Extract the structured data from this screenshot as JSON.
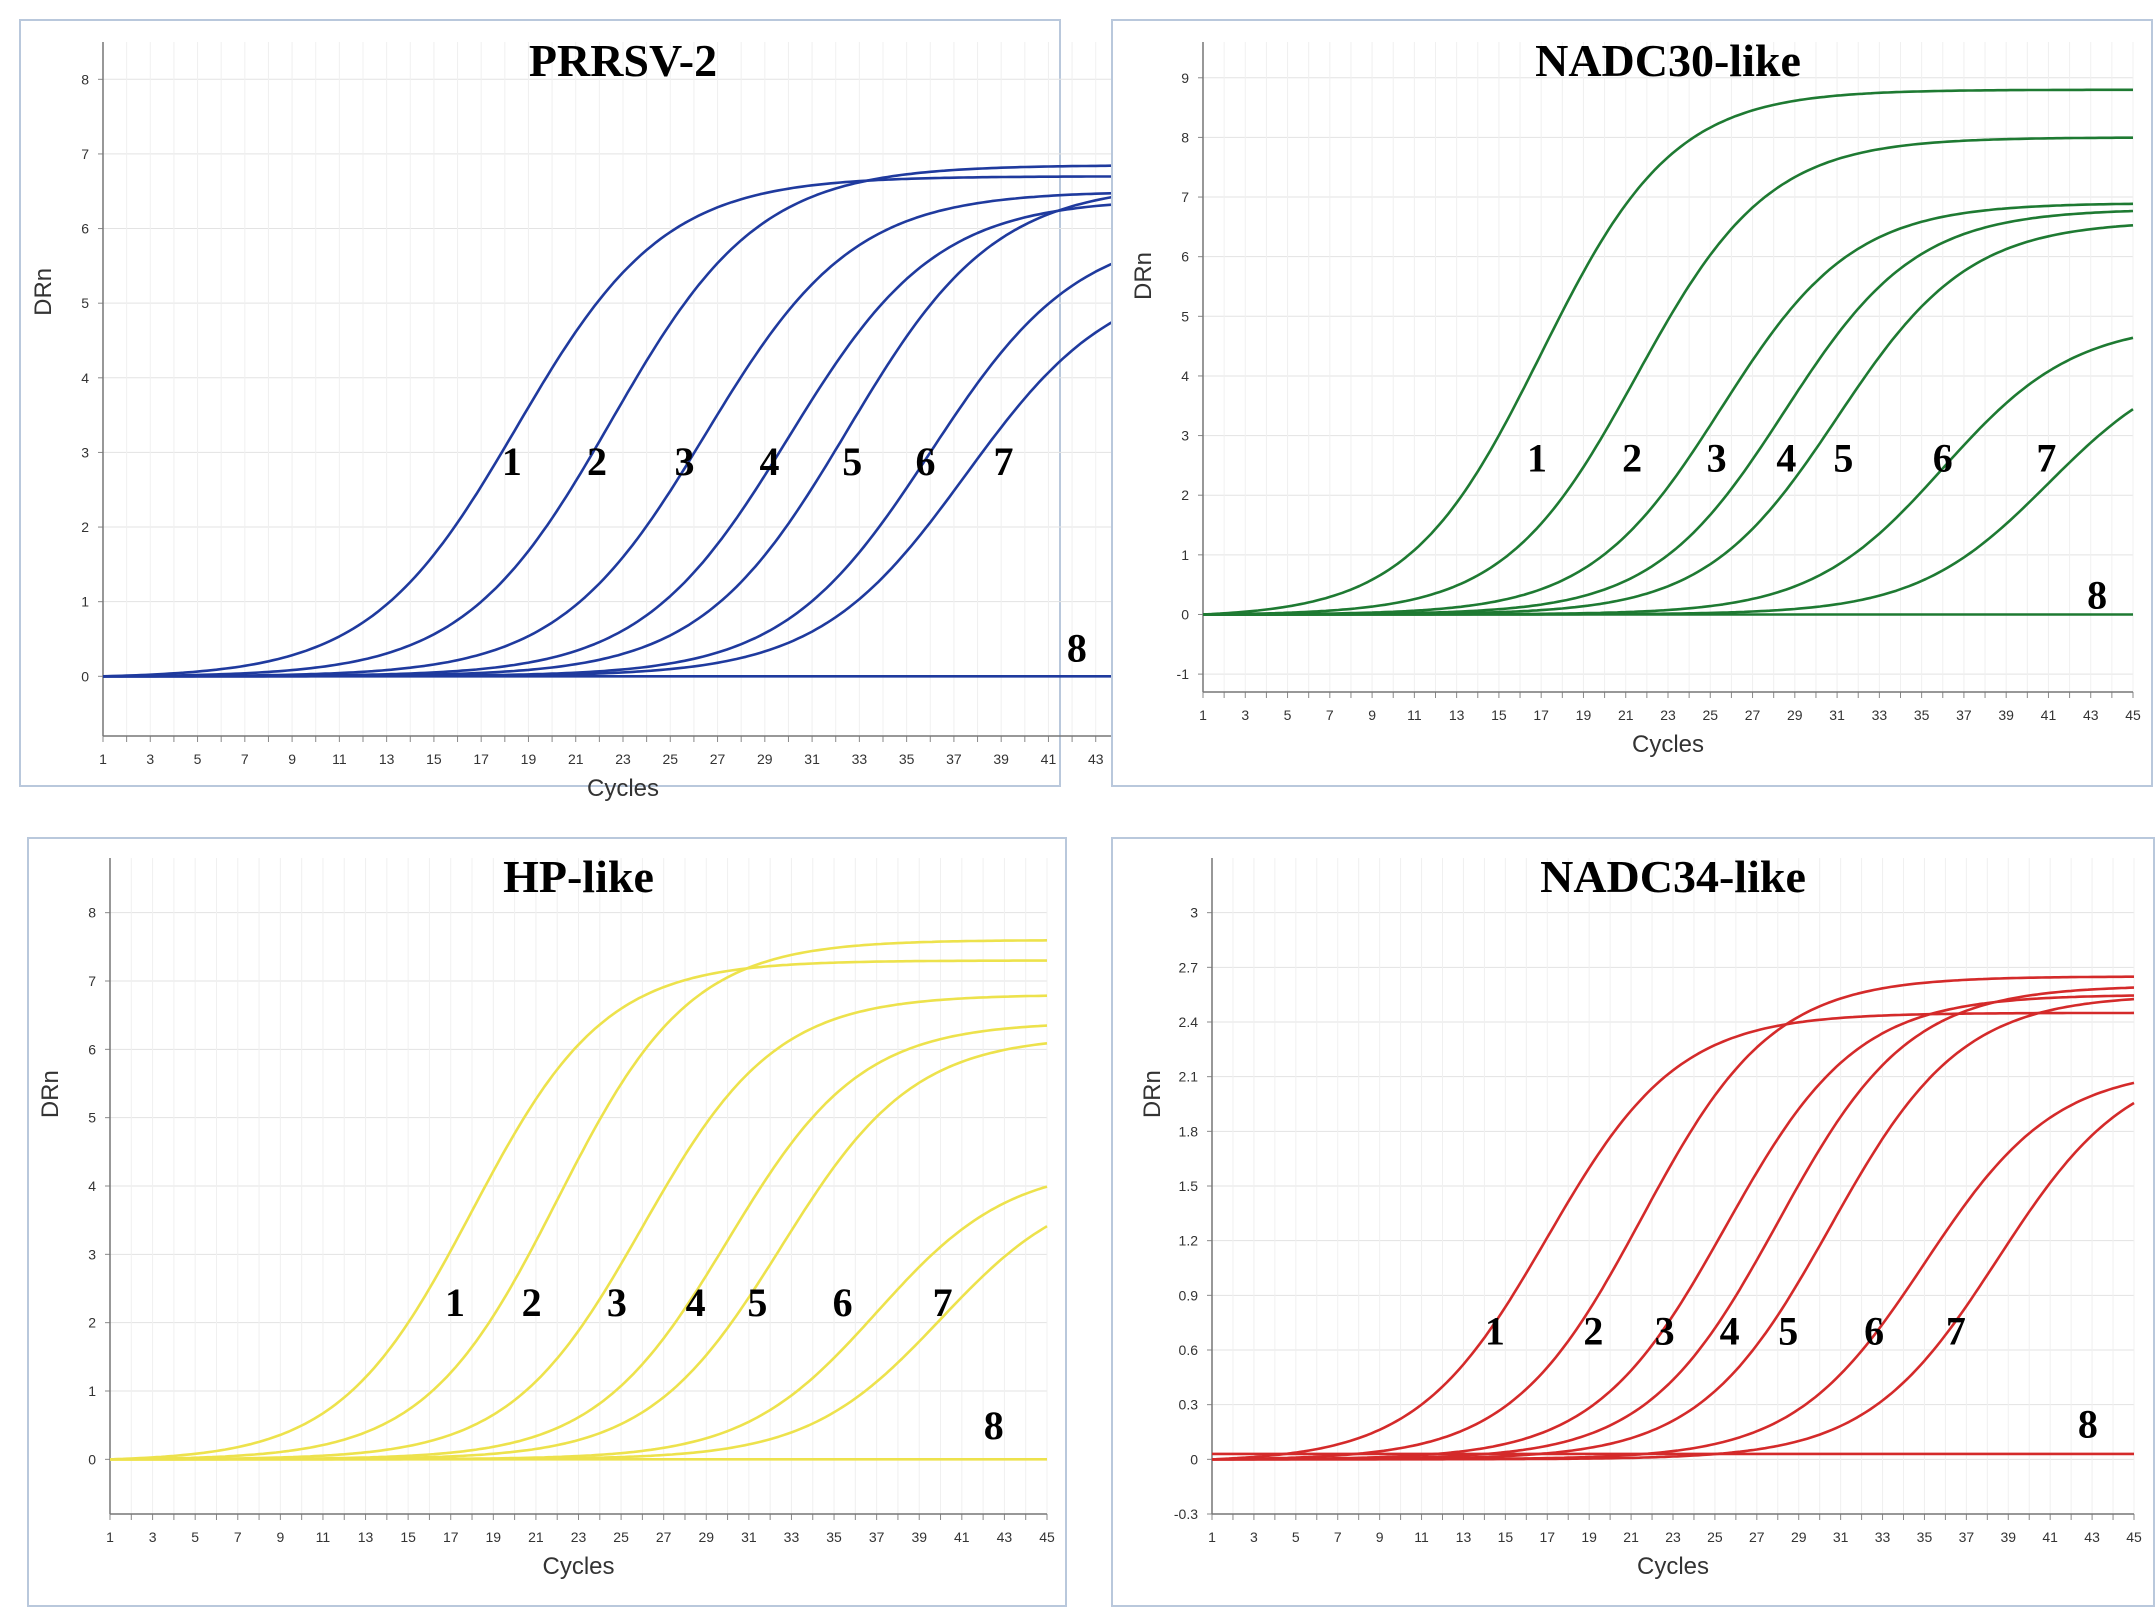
{
  "chart_data": [
    {
      "type": "line",
      "title": "PRRSV-2",
      "xlabel": "Cycles",
      "ylabel": "DRn",
      "xlim": [
        1,
        45
      ],
      "ylim": [
        -0.8,
        8.5
      ],
      "yticks": [
        0,
        1,
        2,
        3,
        4,
        5,
        6,
        7,
        8
      ],
      "ytick_labels": [
        "0",
        "1",
        "2",
        "3",
        "4",
        "5",
        "6",
        "7",
        "8"
      ],
      "color": "#1f3a9e",
      "series": [
        {
          "name": "1",
          "ct": 18.5,
          "plateau": 6.7
        },
        {
          "name": "2",
          "ct": 22.5,
          "plateau": 6.85
        },
        {
          "name": "3",
          "ct": 26.5,
          "plateau": 6.5
        },
        {
          "name": "4",
          "ct": 30.0,
          "plateau": 6.4
        },
        {
          "name": "5",
          "ct": 32.5,
          "plateau": 6.6
        },
        {
          "name": "6",
          "ct": 36.0,
          "plateau": 6.0
        },
        {
          "name": "7",
          "ct": 37.5,
          "plateau": 5.4
        },
        {
          "name": "8",
          "ct": null,
          "plateau": 0
        }
      ],
      "curve_labels": [
        {
          "text": "1",
          "x": 18.3,
          "y": 2.7
        },
        {
          "text": "2",
          "x": 21.9,
          "y": 2.7
        },
        {
          "text": "3",
          "x": 25.6,
          "y": 2.7
        },
        {
          "text": "4",
          "x": 29.2,
          "y": 2.7
        },
        {
          "text": "5",
          "x": 32.7,
          "y": 2.7
        },
        {
          "text": "6",
          "x": 35.8,
          "y": 2.7
        },
        {
          "text": "7",
          "x": 39.1,
          "y": 2.7
        },
        {
          "text": "8",
          "x": 42.2,
          "y": 0.2
        }
      ]
    },
    {
      "type": "line",
      "title": "NADC30-like",
      "xlabel": "Cycles",
      "ylabel": "DRn",
      "xlim": [
        1,
        45
      ],
      "ylim": [
        -1.3,
        9.6
      ],
      "yticks": [
        -1,
        0,
        1,
        2,
        3,
        4,
        5,
        6,
        7,
        8,
        9
      ],
      "ytick_labels": [
        "-1",
        "0",
        "1",
        "2",
        "3",
        "4",
        "5",
        "6",
        "7",
        "8",
        "9"
      ],
      "color": "#1e7a32",
      "series": [
        {
          "name": "1",
          "ct": 17.0,
          "plateau": 8.8
        },
        {
          "name": "2",
          "ct": 21.5,
          "plateau": 8.0
        },
        {
          "name": "3",
          "ct": 25.5,
          "plateau": 6.9
        },
        {
          "name": "4",
          "ct": 28.5,
          "plateau": 6.8
        },
        {
          "name": "5",
          "ct": 31.0,
          "plateau": 6.6
        },
        {
          "name": "6",
          "ct": 36.0,
          "plateau": 4.9
        },
        {
          "name": "7",
          "ct": 41.0,
          "plateau": 4.4
        },
        {
          "name": "8",
          "ct": null,
          "plateau": 0
        }
      ],
      "curve_labels": [
        {
          "text": "1",
          "x": 16.8,
          "y": 2.4
        },
        {
          "text": "2",
          "x": 21.3,
          "y": 2.4
        },
        {
          "text": "3",
          "x": 25.3,
          "y": 2.4
        },
        {
          "text": "4",
          "x": 28.6,
          "y": 2.4
        },
        {
          "text": "5",
          "x": 31.3,
          "y": 2.4
        },
        {
          "text": "6",
          "x": 36.0,
          "y": 2.4
        },
        {
          "text": "7",
          "x": 40.9,
          "y": 2.4
        },
        {
          "text": "8",
          "x": 43.3,
          "y": 0.1
        }
      ]
    },
    {
      "type": "line",
      "title": "HP-like",
      "xlabel": "Cycles",
      "ylabel": "DRn",
      "xlim": [
        1,
        45
      ],
      "ylim": [
        -0.8,
        8.8
      ],
      "yticks": [
        0,
        1,
        2,
        3,
        4,
        5,
        6,
        7,
        8
      ],
      "ytick_labels": [
        "0",
        "1",
        "2",
        "3",
        "4",
        "5",
        "6",
        "7",
        "8"
      ],
      "color": "#ede24c",
      "series": [
        {
          "name": "1",
          "ct": 18.0,
          "plateau": 7.3
        },
        {
          "name": "2",
          "ct": 22.0,
          "plateau": 7.6
        },
        {
          "name": "3",
          "ct": 26.0,
          "plateau": 6.8
        },
        {
          "name": "4",
          "ct": 30.0,
          "plateau": 6.4
        },
        {
          "name": "5",
          "ct": 32.5,
          "plateau": 6.2
        },
        {
          "name": "6",
          "ct": 37.0,
          "plateau": 4.3
        },
        {
          "name": "7",
          "ct": 40.0,
          "plateau": 4.1
        },
        {
          "name": "8",
          "ct": null,
          "plateau": 0
        }
      ],
      "curve_labels": [
        {
          "text": "1",
          "x": 17.2,
          "y": 2.1
        },
        {
          "text": "2",
          "x": 20.8,
          "y": 2.1
        },
        {
          "text": "3",
          "x": 24.8,
          "y": 2.1
        },
        {
          "text": "4",
          "x": 28.5,
          "y": 2.1
        },
        {
          "text": "5",
          "x": 31.4,
          "y": 2.1
        },
        {
          "text": "6",
          "x": 35.4,
          "y": 2.1
        },
        {
          "text": "7",
          "x": 40.1,
          "y": 2.1
        },
        {
          "text": "8",
          "x": 42.5,
          "y": 0.3
        }
      ]
    },
    {
      "type": "line",
      "title": "NADC34-like",
      "xlabel": "Cycles",
      "ylabel": "DRn",
      "xlim": [
        1,
        45
      ],
      "ylim": [
        -0.3,
        3.3
      ],
      "yticks": [
        -0.3,
        0,
        0.3,
        0.6,
        0.9,
        1.2,
        1.5,
        1.8,
        2.1,
        2.4,
        2.7,
        3
      ],
      "ytick_labels": [
        "-0.3",
        "0",
        "0.3",
        "0.6",
        "0.9",
        "1.2",
        "1.5",
        "1.8",
        "2.1",
        "2.4",
        "2.7",
        "3"
      ],
      "color": "#d42a2a",
      "series": [
        {
          "name": "1",
          "ct": 17.0,
          "plateau": 2.45
        },
        {
          "name": "2",
          "ct": 21.5,
          "plateau": 2.65
        },
        {
          "name": "3",
          "ct": 25.5,
          "plateau": 2.55
        },
        {
          "name": "4",
          "ct": 28.0,
          "plateau": 2.6
        },
        {
          "name": "5",
          "ct": 30.5,
          "plateau": 2.55
        },
        {
          "name": "6",
          "ct": 35.0,
          "plateau": 2.15
        },
        {
          "name": "7",
          "ct": 38.5,
          "plateau": 2.2
        },
        {
          "name": "8",
          "ct": null,
          "plateau": 0.03
        }
      ],
      "curve_labels": [
        {
          "text": "1",
          "x": 14.5,
          "y": 0.63
        },
        {
          "text": "2",
          "x": 19.2,
          "y": 0.63
        },
        {
          "text": "3",
          "x": 22.6,
          "y": 0.63
        },
        {
          "text": "4",
          "x": 25.7,
          "y": 0.63
        },
        {
          "text": "5",
          "x": 28.5,
          "y": 0.63
        },
        {
          "text": "6",
          "x": 32.6,
          "y": 0.63
        },
        {
          "text": "7",
          "x": 36.5,
          "y": 0.63
        },
        {
          "text": "8",
          "x": 42.8,
          "y": 0.12
        }
      ]
    }
  ]
}
